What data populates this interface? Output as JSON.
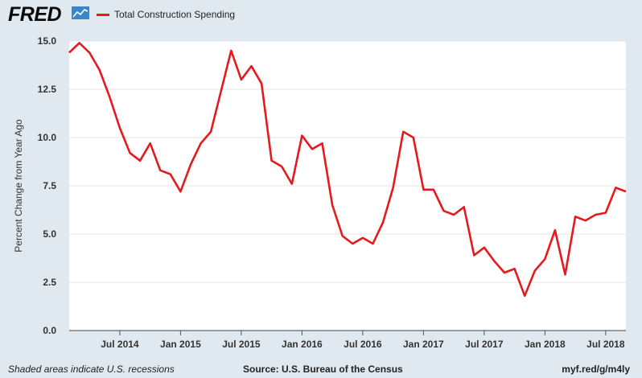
{
  "header": {
    "logo_text": "FRED",
    "legend_label": "Total Construction Spending",
    "series_color": "#e41a1c"
  },
  "footer": {
    "note": "Shaded areas indicate U.S. recessions",
    "source": "Source: U.S. Bureau of the Census",
    "link": "myf.red/g/m4ly"
  },
  "chart_data": {
    "type": "line",
    "title": "",
    "xlabel": "",
    "ylabel": "Percent Change from Year Ago",
    "ylim": [
      0,
      15
    ],
    "yticks": [
      "0.0",
      "2.5",
      "5.0",
      "7.5",
      "10.0",
      "12.5",
      "15.0"
    ],
    "xlim": [
      "2014-02",
      "2018-09"
    ],
    "xticks": [
      {
        "label": "Jul 2014",
        "date": "2014-07"
      },
      {
        "label": "Jan 2015",
        "date": "2015-01"
      },
      {
        "label": "Jul 2015",
        "date": "2015-07"
      },
      {
        "label": "Jan 2016",
        "date": "2016-01"
      },
      {
        "label": "Jul 2016",
        "date": "2016-07"
      },
      {
        "label": "Jan 2017",
        "date": "2017-01"
      },
      {
        "label": "Jul 2017",
        "date": "2017-07"
      },
      {
        "label": "Jan 2018",
        "date": "2018-01"
      },
      {
        "label": "Jul 2018",
        "date": "2018-07"
      }
    ],
    "grid": true,
    "legend_position": "top-left",
    "series": [
      {
        "name": "Total Construction Spending",
        "color": "#e41a1c",
        "x": [
          "2014-02",
          "2014-03",
          "2014-04",
          "2014-05",
          "2014-06",
          "2014-07",
          "2014-08",
          "2014-09",
          "2014-10",
          "2014-11",
          "2014-12",
          "2015-01",
          "2015-02",
          "2015-03",
          "2015-04",
          "2015-05",
          "2015-06",
          "2015-07",
          "2015-08",
          "2015-09",
          "2015-10",
          "2015-11",
          "2015-12",
          "2016-01",
          "2016-02",
          "2016-03",
          "2016-04",
          "2016-05",
          "2016-06",
          "2016-07",
          "2016-08",
          "2016-09",
          "2016-10",
          "2016-11",
          "2016-12",
          "2017-01",
          "2017-02",
          "2017-03",
          "2017-04",
          "2017-05",
          "2017-06",
          "2017-07",
          "2017-08",
          "2017-09",
          "2017-10",
          "2017-11",
          "2017-12",
          "2018-01",
          "2018-02",
          "2018-03",
          "2018-04",
          "2018-05",
          "2018-06",
          "2018-07",
          "2018-08",
          "2018-09"
        ],
        "values": [
          14.4,
          14.9,
          14.4,
          13.5,
          12.1,
          10.5,
          9.2,
          8.8,
          9.7,
          8.3,
          8.1,
          7.2,
          8.6,
          9.7,
          10.3,
          12.4,
          14.5,
          13.0,
          13.7,
          12.8,
          8.8,
          8.5,
          7.6,
          10.1,
          9.4,
          9.7,
          6.5,
          4.9,
          4.5,
          4.8,
          4.5,
          5.6,
          7.4,
          10.3,
          10.0,
          7.3,
          7.3,
          6.2,
          6.0,
          6.4,
          3.9,
          4.3,
          3.6,
          3.0,
          3.2,
          1.8,
          3.1,
          3.7,
          5.2,
          2.9,
          5.9,
          5.7,
          6.0,
          6.1,
          7.4,
          7.2
        ]
      }
    ]
  }
}
